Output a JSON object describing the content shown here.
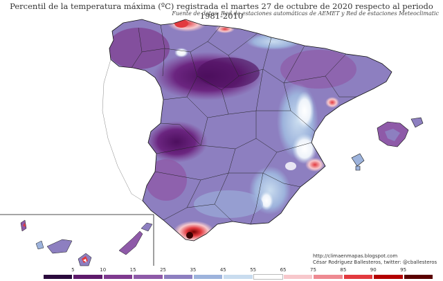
{
  "title": "Percentil de la temperatura máxima (ºC) registrada el martes 27 de octubre de 2020 respecto al periodo 1981-2010",
  "subtitle": "Fuente de datos: Red de estaciones automáticas de AEMET y Red de estaciones Meteoclimatic",
  "credit": {
    "url": "http://climaenmapas.blogspot.com",
    "author": "César Rodríguez Ballesteros, twitter: @cballesteros"
  },
  "legend": {
    "ticks": [
      "5",
      "10",
      "15",
      "25",
      "35",
      "45",
      "55",
      "65",
      "75",
      "85",
      "90",
      "95"
    ],
    "colors": [
      "#2b0a3d",
      "#5e1a6b",
      "#7f3a8f",
      "#8e5aa8",
      "#8d7fc0",
      "#9db3dc",
      "#c9dcef",
      "#ffffff",
      "#f7c8cc",
      "#ee8a92",
      "#e23a3f",
      "#b30000",
      "#5a0000"
    ]
  }
}
